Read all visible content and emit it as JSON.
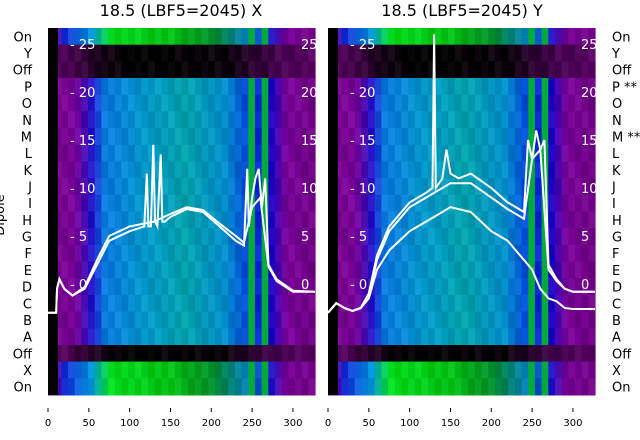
{
  "chart_data": [
    {
      "type": "heatmap",
      "title": "18.5 (LBF5=2045) X",
      "ylabel": "Dipole",
      "row_labels": [
        "On",
        "Y",
        "Off",
        "P",
        "O",
        "N",
        "M",
        "L",
        "K",
        "J",
        "I",
        "H",
        "G",
        "F",
        "E",
        "D",
        "C",
        "B",
        "A",
        "Off",
        "X",
        "On"
      ],
      "xticks": [
        0,
        50,
        100,
        150,
        200,
        250,
        300
      ],
      "xlim": [
        0,
        327
      ],
      "inner_yticks": [
        25,
        20,
        15,
        10,
        5,
        0
      ],
      "ylim": [
        -5,
        26.5
      ],
      "series": [
        {
          "name": "trace1",
          "x": [
            0,
            10,
            11,
            14,
            20,
            30,
            45,
            60,
            75,
            100,
            118,
            121,
            123,
            126,
            129,
            131,
            134,
            138,
            140,
            143,
            150,
            170,
            190,
            210,
            230,
            240,
            244,
            246,
            250,
            254,
            258,
            262,
            266,
            270,
            280,
            300,
            327
          ],
          "y": [
            -3,
            -3,
            -0.5,
            0.5,
            -0.5,
            -1.2,
            -0.5,
            2,
            4.5,
            5.5,
            6,
            11.5,
            6,
            6,
            14.5,
            6.5,
            6,
            13.5,
            6.5,
            6.5,
            7,
            7.8,
            7.5,
            6,
            4.5,
            4,
            12,
            6,
            9,
            11,
            12,
            8,
            11,
            2,
            0.5,
            -0.7,
            -0.8
          ]
        },
        {
          "name": "trace2",
          "x": [
            0,
            10,
            11,
            14,
            20,
            30,
            45,
            60,
            75,
            100,
            130,
            150,
            170,
            190,
            210,
            230,
            240,
            250,
            260,
            270,
            280,
            300,
            327
          ],
          "y": [
            -3,
            -3,
            -0.5,
            0.5,
            -0.5,
            -1.2,
            -0.3,
            2.5,
            5,
            6,
            6.5,
            7.3,
            8,
            7.7,
            6.3,
            5,
            4.3,
            8,
            9,
            1.8,
            0.3,
            -0.8,
            -0.8
          ]
        }
      ]
    },
    {
      "type": "heatmap",
      "title": "18.5 (LBF5=2045) Y",
      "row_labels": [
        "On",
        "Y",
        "Off",
        "P **",
        "O",
        "N",
        "M **",
        "L",
        "K",
        "J",
        "I",
        "H",
        "G",
        "F",
        "E",
        "D",
        "C",
        "B",
        "A",
        "Off",
        "X",
        "On"
      ],
      "xticks": [
        0,
        50,
        100,
        150,
        200,
        250,
        300
      ],
      "xlim": [
        0,
        327
      ],
      "inner_yticks": [
        25,
        20,
        15,
        10,
        5,
        0
      ],
      "ylim": [
        -5,
        26.5
      ],
      "series": [
        {
          "name": "trace1",
          "x": [
            0,
            10,
            20,
            30,
            40,
            50,
            60,
            75,
            100,
            120,
            128,
            130,
            132,
            140,
            145,
            150,
            160,
            175,
            200,
            220,
            240,
            245,
            250,
            255,
            260,
            265,
            270,
            280,
            290,
            300,
            327
          ],
          "y": [
            -3,
            -2,
            -2.5,
            -2.8,
            -2.5,
            -1,
            3,
            6,
            8.5,
            9.5,
            10,
            26,
            10,
            11,
            14,
            11.5,
            11,
            11.5,
            10,
            8.5,
            7.5,
            15,
            13,
            16,
            14,
            15,
            2,
            0.5,
            -0.5,
            -0.8,
            -0.8
          ]
        },
        {
          "name": "trace2",
          "x": [
            0,
            10,
            20,
            30,
            40,
            50,
            60,
            75,
            100,
            120,
            150,
            175,
            200,
            220,
            240,
            250,
            260,
            270,
            280,
            290,
            300,
            327
          ],
          "y": [
            -3,
            -2,
            -2.5,
            -2.8,
            -2.5,
            -1,
            2.5,
            5.5,
            8,
            9,
            10.5,
            10.5,
            9,
            7.8,
            6.8,
            13,
            14,
            1.5,
            0.3,
            -0.5,
            -0.8,
            -0.8
          ]
        },
        {
          "name": "trace3",
          "x": [
            0,
            10,
            20,
            30,
            40,
            50,
            60,
            75,
            100,
            120,
            150,
            175,
            200,
            220,
            240,
            250,
            260,
            270,
            280,
            290,
            300,
            327
          ],
          "y": [
            -3,
            -2,
            -2.5,
            -2.8,
            -2.5,
            -1.5,
            1.5,
            3.5,
            5.5,
            6.5,
            8,
            7.5,
            5.5,
            4.5,
            2.5,
            1.5,
            -0.5,
            -1.5,
            -1.8,
            -2.5,
            -2.6,
            -2.6
          ]
        }
      ]
    }
  ]
}
